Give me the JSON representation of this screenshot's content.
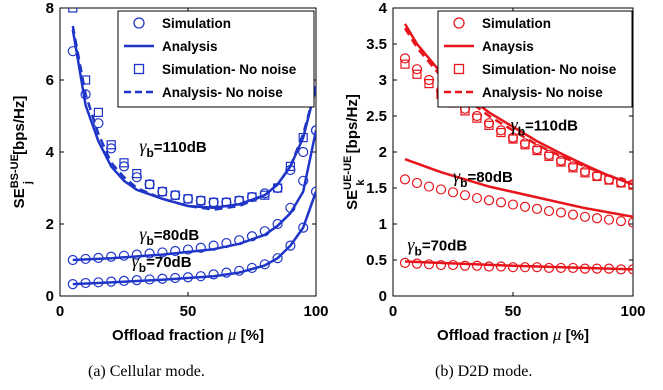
{
  "chart_data": [
    {
      "type": "line",
      "caption": "(a) Cellular mode.",
      "xlabel": "Offload fraction",
      "xlabel_symbol": "μ",
      "xlabel_unit": "[%]",
      "ylabel": "SE",
      "ylabel_sub": "j",
      "ylabel_sup": "BS-UE",
      "ylabel_unit": "[bps/Hz]",
      "xlim": [
        0,
        100
      ],
      "ylim": [
        0,
        8
      ],
      "xticks": [
        0,
        50,
        100
      ],
      "yticks": [
        0,
        2,
        4,
        6,
        8
      ],
      "grid": false,
      "legend_position": "top-right",
      "color": "#1f35c8",
      "legend": [
        {
          "label": "Simulation",
          "marker": "circle",
          "line": "none"
        },
        {
          "label": "Analysis",
          "marker": "none",
          "line": "solid"
        },
        {
          "label": "Simulation- No noise",
          "marker": "square",
          "line": "none"
        },
        {
          "label": "Analysis- No noise",
          "marker": "none",
          "line": "dashed"
        }
      ],
      "annotations": [
        {
          "prefix": "γ",
          "sub": "b",
          "text": "=110dB",
          "at": [
            31,
            4.0
          ]
        },
        {
          "prefix": "γ",
          "sub": "b",
          "text": "=80dB",
          "at": [
            31,
            1.55
          ]
        },
        {
          "prefix": "γ",
          "sub": "b",
          "text": "=70dB",
          "at": [
            28,
            0.8
          ]
        }
      ],
      "series": [
        {
          "group": "110dB",
          "style": "analysis",
          "x": [
            5,
            10,
            15,
            20,
            25,
            30,
            40,
            50,
            60,
            70,
            80,
            85,
            90,
            95,
            100
          ],
          "y": [
            7.4,
            5.3,
            4.3,
            3.6,
            3.2,
            2.95,
            2.7,
            2.5,
            2.45,
            2.55,
            2.8,
            3.1,
            3.6,
            4.4,
            5.8
          ]
        },
        {
          "group": "110dB",
          "style": "analysis-no-noise",
          "x": [
            5,
            10,
            15,
            20,
            25,
            30,
            40,
            50,
            60,
            70,
            80,
            85,
            90,
            95,
            100
          ],
          "y": [
            7.5,
            5.6,
            4.5,
            3.7,
            3.3,
            3.0,
            2.7,
            2.5,
            2.4,
            2.5,
            2.8,
            3.1,
            3.6,
            4.5,
            5.8
          ]
        },
        {
          "group": "110dB",
          "style": "simulation",
          "x": [
            5,
            10,
            15,
            20,
            25,
            30,
            35,
            40,
            45,
            50,
            55,
            60,
            65,
            70,
            75,
            80,
            85,
            90,
            95,
            100
          ],
          "y": [
            6.8,
            5.6,
            4.8,
            4.1,
            3.6,
            3.3,
            3.1,
            2.9,
            2.8,
            2.7,
            2.65,
            2.6,
            2.6,
            2.65,
            2.75,
            2.85,
            3.0,
            3.5,
            4.0,
            4.6
          ]
        },
        {
          "group": "110dB",
          "style": "simulation-no-noise",
          "x": [
            5,
            10,
            15,
            20,
            25,
            30,
            35,
            40,
            45,
            50,
            55,
            60,
            65,
            70,
            75,
            80,
            85,
            90,
            95,
            100
          ],
          "y": [
            8.0,
            6.0,
            5.1,
            4.2,
            3.7,
            3.4,
            3.1,
            2.9,
            2.8,
            2.7,
            2.65,
            2.6,
            2.6,
            2.65,
            2.75,
            2.8,
            3.0,
            3.6,
            4.4,
            5.7
          ]
        },
        {
          "group": "80dB",
          "style": "analysis",
          "x": [
            5,
            20,
            40,
            60,
            70,
            80,
            85,
            90,
            95,
            100
          ],
          "y": [
            1.0,
            1.05,
            1.15,
            1.3,
            1.45,
            1.7,
            1.95,
            2.3,
            2.9,
            4.6
          ]
        },
        {
          "group": "80dB",
          "style": "simulation",
          "x": [
            5,
            10,
            15,
            20,
            25,
            30,
            35,
            40,
            45,
            50,
            55,
            60,
            65,
            70,
            75,
            80,
            85,
            90,
            95,
            100
          ],
          "y": [
            1.0,
            1.03,
            1.06,
            1.09,
            1.12,
            1.15,
            1.18,
            1.21,
            1.25,
            1.29,
            1.34,
            1.4,
            1.47,
            1.55,
            1.66,
            1.8,
            2.0,
            2.45,
            3.2,
            4.6
          ]
        },
        {
          "group": "70dB",
          "style": "analysis",
          "x": [
            5,
            20,
            40,
            60,
            70,
            80,
            85,
            90,
            95,
            100
          ],
          "y": [
            0.33,
            0.38,
            0.45,
            0.55,
            0.65,
            0.85,
            1.05,
            1.4,
            1.9,
            2.9
          ]
        },
        {
          "group": "70dB",
          "style": "simulation",
          "x": [
            5,
            10,
            15,
            20,
            25,
            30,
            35,
            40,
            45,
            50,
            55,
            60,
            65,
            70,
            75,
            80,
            85,
            90,
            95,
            100
          ],
          "y": [
            0.33,
            0.36,
            0.38,
            0.4,
            0.42,
            0.44,
            0.46,
            0.48,
            0.5,
            0.52,
            0.55,
            0.6,
            0.65,
            0.7,
            0.78,
            0.88,
            1.05,
            1.4,
            1.9,
            2.9
          ]
        }
      ]
    },
    {
      "type": "line",
      "caption": "(b) D2D mode.",
      "xlabel": "Offload fraction",
      "xlabel_symbol": "μ",
      "xlabel_unit": "[%]",
      "ylabel": "SE",
      "ylabel_sub": "k",
      "ylabel_sup": "UE-UE",
      "ylabel_unit": "[bps/Hz]",
      "xlim": [
        0,
        100
      ],
      "ylim": [
        0,
        4
      ],
      "xticks": [
        0,
        50,
        100
      ],
      "yticks": [
        0,
        0.5,
        1,
        1.5,
        2,
        2.5,
        3,
        3.5,
        4
      ],
      "grid": false,
      "legend_position": "top-right",
      "color": "#e8141b",
      "legend": [
        {
          "label": "Simulation",
          "marker": "circle",
          "line": "none"
        },
        {
          "label": "Anaysis",
          "marker": "none",
          "line": "solid"
        },
        {
          "label": "Simulation- No noise",
          "marker": "square",
          "line": "none"
        },
        {
          "label": "Analysis- No noise",
          "marker": "none",
          "line": "dashed"
        }
      ],
      "annotations": [
        {
          "prefix": "γ",
          "sub": "b",
          "text": "=110dB",
          "at": [
            49,
            2.3
          ]
        },
        {
          "prefix": "γ",
          "sub": "b",
          "text": "=80dB",
          "at": [
            25,
            1.58
          ]
        },
        {
          "prefix": "γ",
          "sub": "b",
          "text": "=70dB",
          "at": [
            6,
            0.63
          ]
        }
      ],
      "series": [
        {
          "group": "110dB",
          "style": "analysis",
          "x": [
            5,
            10,
            20,
            30,
            40,
            50,
            60,
            70,
            80,
            90,
            100
          ],
          "y": [
            3.78,
            3.5,
            3.1,
            2.8,
            2.55,
            2.35,
            2.15,
            1.98,
            1.82,
            1.67,
            1.55
          ]
        },
        {
          "group": "110dB",
          "style": "analysis-no-noise",
          "x": [
            5,
            10,
            20,
            30,
            40,
            50,
            60,
            70,
            80,
            90,
            100
          ],
          "y": [
            3.72,
            3.45,
            3.05,
            2.75,
            2.5,
            2.3,
            2.1,
            1.94,
            1.8,
            1.67,
            1.55
          ]
        },
        {
          "group": "110dB",
          "style": "simulation",
          "x": [
            5,
            10,
            15,
            20,
            25,
            30,
            35,
            40,
            45,
            50,
            55,
            60,
            65,
            70,
            75,
            80,
            85,
            90,
            95,
            100
          ],
          "y": [
            3.3,
            3.15,
            3.0,
            2.85,
            2.72,
            2.6,
            2.5,
            2.4,
            2.3,
            2.2,
            2.12,
            2.04,
            1.96,
            1.88,
            1.8,
            1.73,
            1.67,
            1.62,
            1.58,
            1.55
          ]
        },
        {
          "group": "110dB",
          "style": "simulation-no-noise",
          "x": [
            5,
            10,
            15,
            20,
            25,
            30,
            35,
            40,
            45,
            50,
            55,
            60,
            65,
            70,
            75,
            80,
            85,
            90,
            95,
            100
          ],
          "y": [
            3.22,
            3.08,
            2.95,
            2.8,
            2.68,
            2.57,
            2.47,
            2.37,
            2.27,
            2.18,
            2.1,
            2.02,
            1.94,
            1.86,
            1.78,
            1.71,
            1.66,
            1.61,
            1.57,
            1.54
          ]
        },
        {
          "group": "80dB",
          "style": "analysis",
          "x": [
            5,
            20,
            40,
            60,
            80,
            100
          ],
          "y": [
            1.9,
            1.72,
            1.52,
            1.37,
            1.22,
            1.1
          ]
        },
        {
          "group": "80dB",
          "style": "simulation",
          "x": [
            5,
            10,
            15,
            20,
            25,
            30,
            35,
            40,
            45,
            50,
            55,
            60,
            65,
            70,
            75,
            80,
            85,
            90,
            95,
            100
          ],
          "y": [
            1.62,
            1.57,
            1.52,
            1.48,
            1.44,
            1.4,
            1.36,
            1.33,
            1.3,
            1.27,
            1.24,
            1.21,
            1.18,
            1.16,
            1.13,
            1.1,
            1.08,
            1.06,
            1.04,
            1.02
          ]
        },
        {
          "group": "70dB",
          "style": "analysis",
          "x": [
            5,
            50,
            100
          ],
          "y": [
            0.48,
            0.42,
            0.37
          ]
        },
        {
          "group": "70dB",
          "style": "simulation",
          "x": [
            5,
            10,
            15,
            20,
            25,
            30,
            35,
            40,
            45,
            50,
            55,
            60,
            65,
            70,
            75,
            80,
            85,
            90,
            95,
            100
          ],
          "y": [
            0.46,
            0.45,
            0.44,
            0.43,
            0.43,
            0.42,
            0.42,
            0.41,
            0.41,
            0.4,
            0.4,
            0.4,
            0.39,
            0.39,
            0.39,
            0.38,
            0.38,
            0.38,
            0.37,
            0.37
          ]
        }
      ]
    }
  ]
}
